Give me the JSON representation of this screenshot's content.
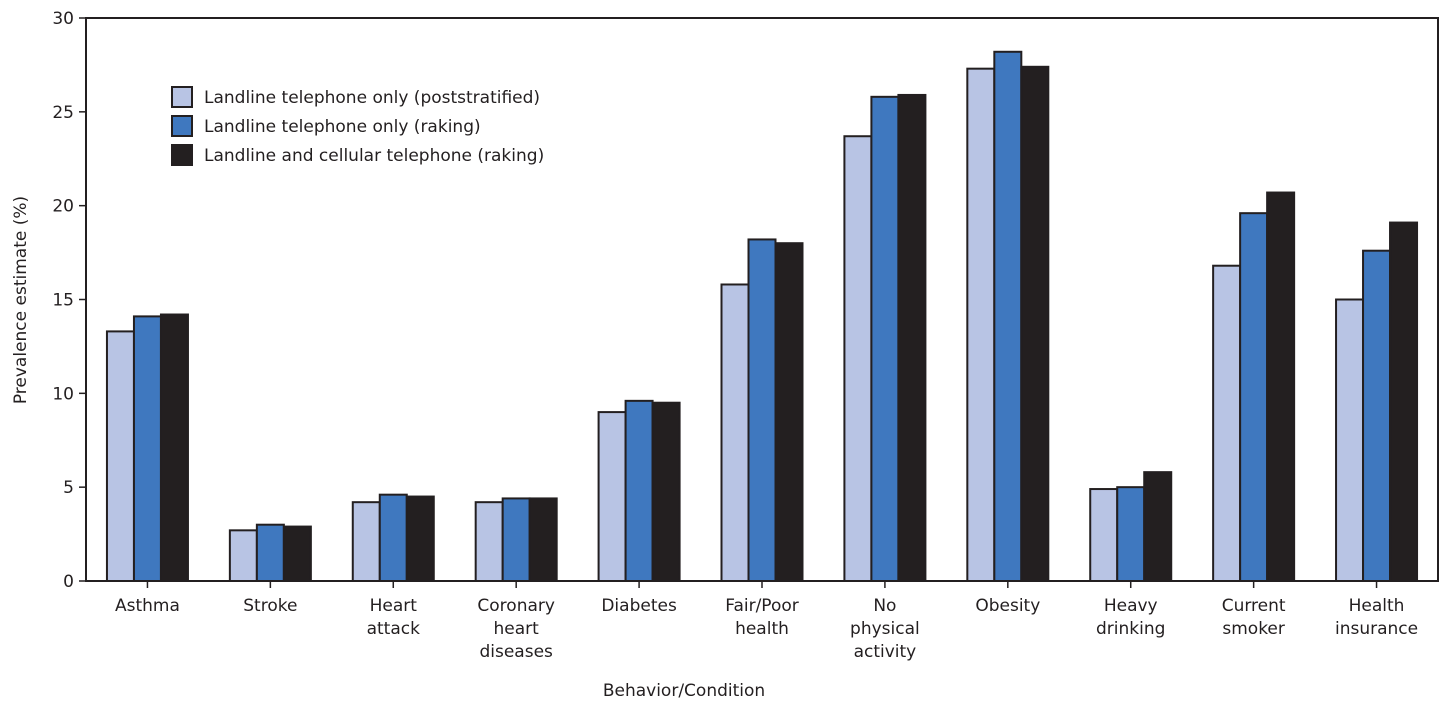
{
  "chart_data": {
    "type": "bar",
    "x_label": "Behavior/Condition",
    "y_label": "Prevalence estimate (%)",
    "categories": [
      "Asthma",
      "Stroke",
      "Heart attack",
      "Coronary heart diseases",
      "Diabetes",
      "Fair/Poor health",
      "No physical activity",
      "Obesity",
      "Heavy drinking",
      "Current smoker",
      "Health insurance"
    ],
    "series": [
      {
        "name": "Landline telephone only (poststratified)",
        "color": "#b8c4e4",
        "values": [
          13.3,
          2.7,
          4.2,
          4.2,
          9.0,
          15.8,
          23.7,
          27.3,
          4.9,
          16.8,
          15.0
        ]
      },
      {
        "name": "Landline telephone only (raking)",
        "color": "#3f78bf",
        "values": [
          14.1,
          3.0,
          4.6,
          4.4,
          9.6,
          18.2,
          25.8,
          28.2,
          5.0,
          19.6,
          17.6
        ]
      },
      {
        "name": "Landline and cellular telephone (raking)",
        "color": "#231f20",
        "values": [
          14.2,
          2.9,
          4.5,
          4.4,
          9.5,
          18.0,
          25.9,
          27.4,
          5.8,
          20.7,
          19.1
        ]
      }
    ],
    "ylim": [
      0,
      30
    ],
    "yticks": [
      0,
      5,
      10,
      15,
      20,
      25,
      30
    ],
    "legend": "upper left"
  }
}
